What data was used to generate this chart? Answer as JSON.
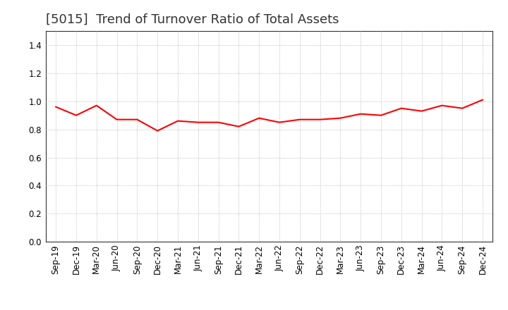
{
  "title": "[5015]  Trend of Turnover Ratio of Total Assets",
  "x_labels": [
    "Sep-19",
    "Dec-19",
    "Mar-20",
    "Jun-20",
    "Sep-20",
    "Dec-20",
    "Mar-21",
    "Jun-21",
    "Sep-21",
    "Dec-21",
    "Mar-22",
    "Jun-22",
    "Sep-22",
    "Dec-22",
    "Mar-23",
    "Jun-23",
    "Sep-23",
    "Dec-23",
    "Mar-24",
    "Jun-24",
    "Sep-24",
    "Dec-24"
  ],
  "values": [
    0.96,
    0.9,
    0.97,
    0.87,
    0.87,
    0.79,
    0.86,
    0.85,
    0.85,
    0.82,
    0.88,
    0.85,
    0.87,
    0.87,
    0.88,
    0.91,
    0.9,
    0.95,
    0.93,
    0.97,
    0.95,
    1.01
  ],
  "line_color": "#ff0000",
  "line_width": 1.5,
  "ylim": [
    0.0,
    1.5
  ],
  "yticks": [
    0.0,
    0.2,
    0.4,
    0.6,
    0.8,
    1.0,
    1.2,
    1.4
  ],
  "grid_color": "#aaaaaa",
  "background_color": "#ffffff",
  "title_fontsize": 13,
  "tick_fontsize": 8.5
}
